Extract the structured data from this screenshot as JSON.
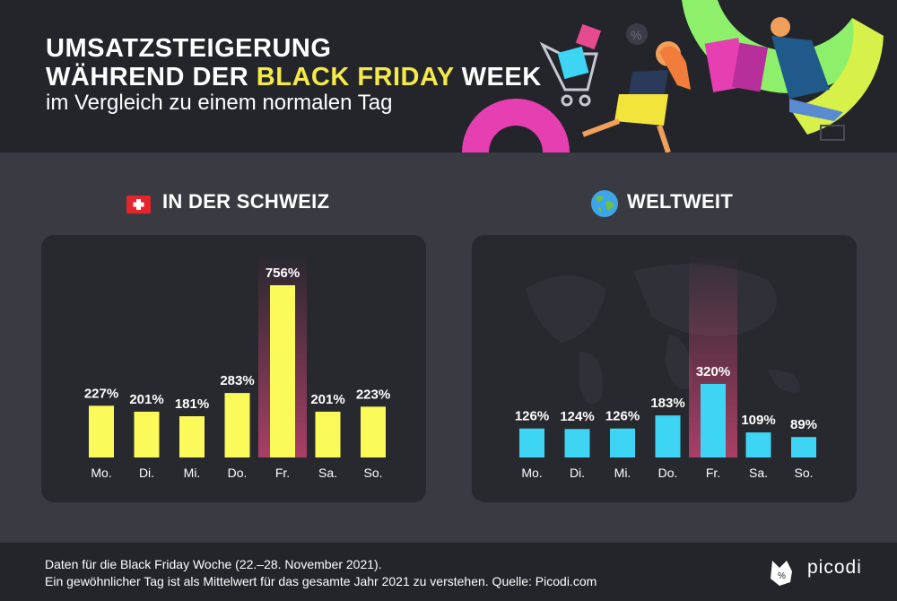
{
  "header": {
    "title_line1": "UMSATZSTEIGERUNG",
    "title_line2_pre": "WÄHREND DER ",
    "title_line2_highlight": "BLACK FRIDAY",
    "title_line2_post": " WEEK",
    "subtitle": "im Vergleich zu einem normalen Tag"
  },
  "sections": {
    "switzerland_title": "IN DER SCHWEIZ",
    "worldwide_title": "WELTWEIT"
  },
  "footer": {
    "line1": "Daten für die Black Friday Woche (22.–28. November 2021).",
    "line2": "Ein gewöhnlicher Tag ist als Mittelwert für das gesamte Jahr 2021 zu verstehen. Quelle: Picodi.com",
    "brand": "picodi"
  },
  "colors": {
    "switzerland_bar": "#fafa5a",
    "worldwide_bar": "#3ed4f3",
    "highlight_band": "#ff4f8b",
    "title_highlight": "#f3ea4a"
  },
  "chart_data": [
    {
      "type": "bar",
      "title": "IN DER SCHWEIZ",
      "categories": [
        "Mo.",
        "Di.",
        "Mi.",
        "Do.",
        "Fr.",
        "Sa.",
        "So."
      ],
      "values": [
        227,
        201,
        181,
        283,
        756,
        201,
        223
      ],
      "labels": [
        "227%",
        "201%",
        "181%",
        "283%",
        "756%",
        "201%",
        "223%"
      ],
      "highlight_category": "Fr.",
      "ylim": [
        0,
        756
      ]
    },
    {
      "type": "bar",
      "title": "WELTWEIT",
      "categories": [
        "Mo.",
        "Di.",
        "Mi.",
        "Do.",
        "Fr.",
        "Sa.",
        "So."
      ],
      "values": [
        126,
        124,
        126,
        183,
        320,
        109,
        89
      ],
      "labels": [
        "126%",
        "124%",
        "126%",
        "183%",
        "320%",
        "109%",
        "89%"
      ],
      "highlight_category": "Fr.",
      "ylim": [
        0,
        320
      ]
    }
  ]
}
